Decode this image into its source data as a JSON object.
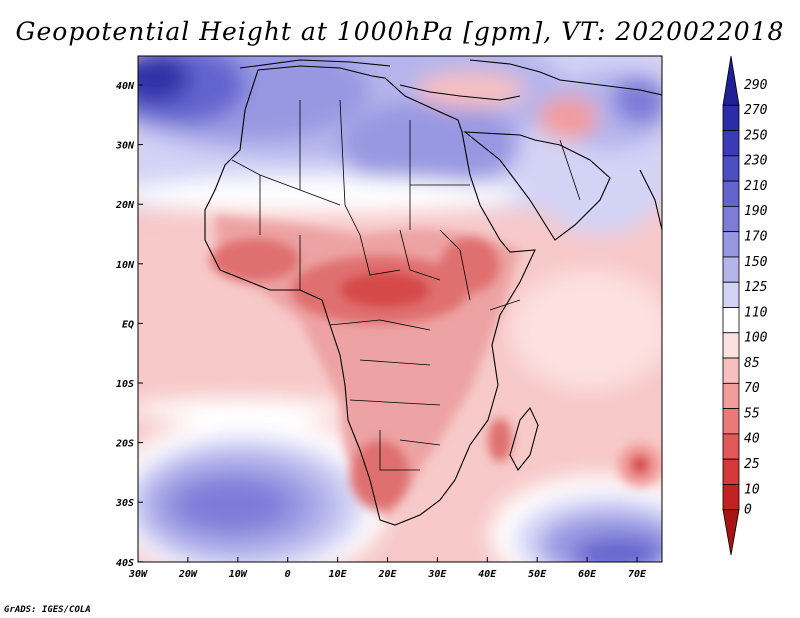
{
  "title": "Geopotential Height at 1000hPa [gpm], VT: 2020022018",
  "credit": "GrADS: IGES/COLA",
  "axes": {
    "lat_labels": [
      "40N",
      "30N",
      "20N",
      "10N",
      "EQ",
      "10S",
      "20S",
      "30S",
      "40S"
    ],
    "lon_labels": [
      "30W",
      "20W",
      "10W",
      "0",
      "10E",
      "20E",
      "30E",
      "40E",
      "50E",
      "60E",
      "70E"
    ]
  },
  "colorbar": {
    "levels": [
      "290",
      "270",
      "250",
      "230",
      "210",
      "190",
      "170",
      "150",
      "125",
      "110",
      "100",
      "85",
      "70",
      "55",
      "40",
      "25",
      "10",
      "0"
    ],
    "colors": [
      "#1f1f96",
      "#2c2ca8",
      "#3b3bb8",
      "#4d4dc4",
      "#6464cf",
      "#7d7dd9",
      "#9898e2",
      "#b5b5ec",
      "#d3d3f6",
      "#ffffff",
      "#fde0e0",
      "#f8bfbf",
      "#f29c9c",
      "#ea7a7a",
      "#e05858",
      "#d43a3a",
      "#c22222",
      "#a81414"
    ]
  },
  "map_colors": {
    "ocean_neutral": "#f7c9c9",
    "land_mid": "#eda3a3",
    "land_low": "#e07070",
    "land_lowest": "#d64a4a",
    "high_deep": "#3030a8",
    "high_mid": "#6464cf",
    "high_light": "#9898e2",
    "high_pale": "#d3d3f6",
    "white": "#ffffff"
  }
}
